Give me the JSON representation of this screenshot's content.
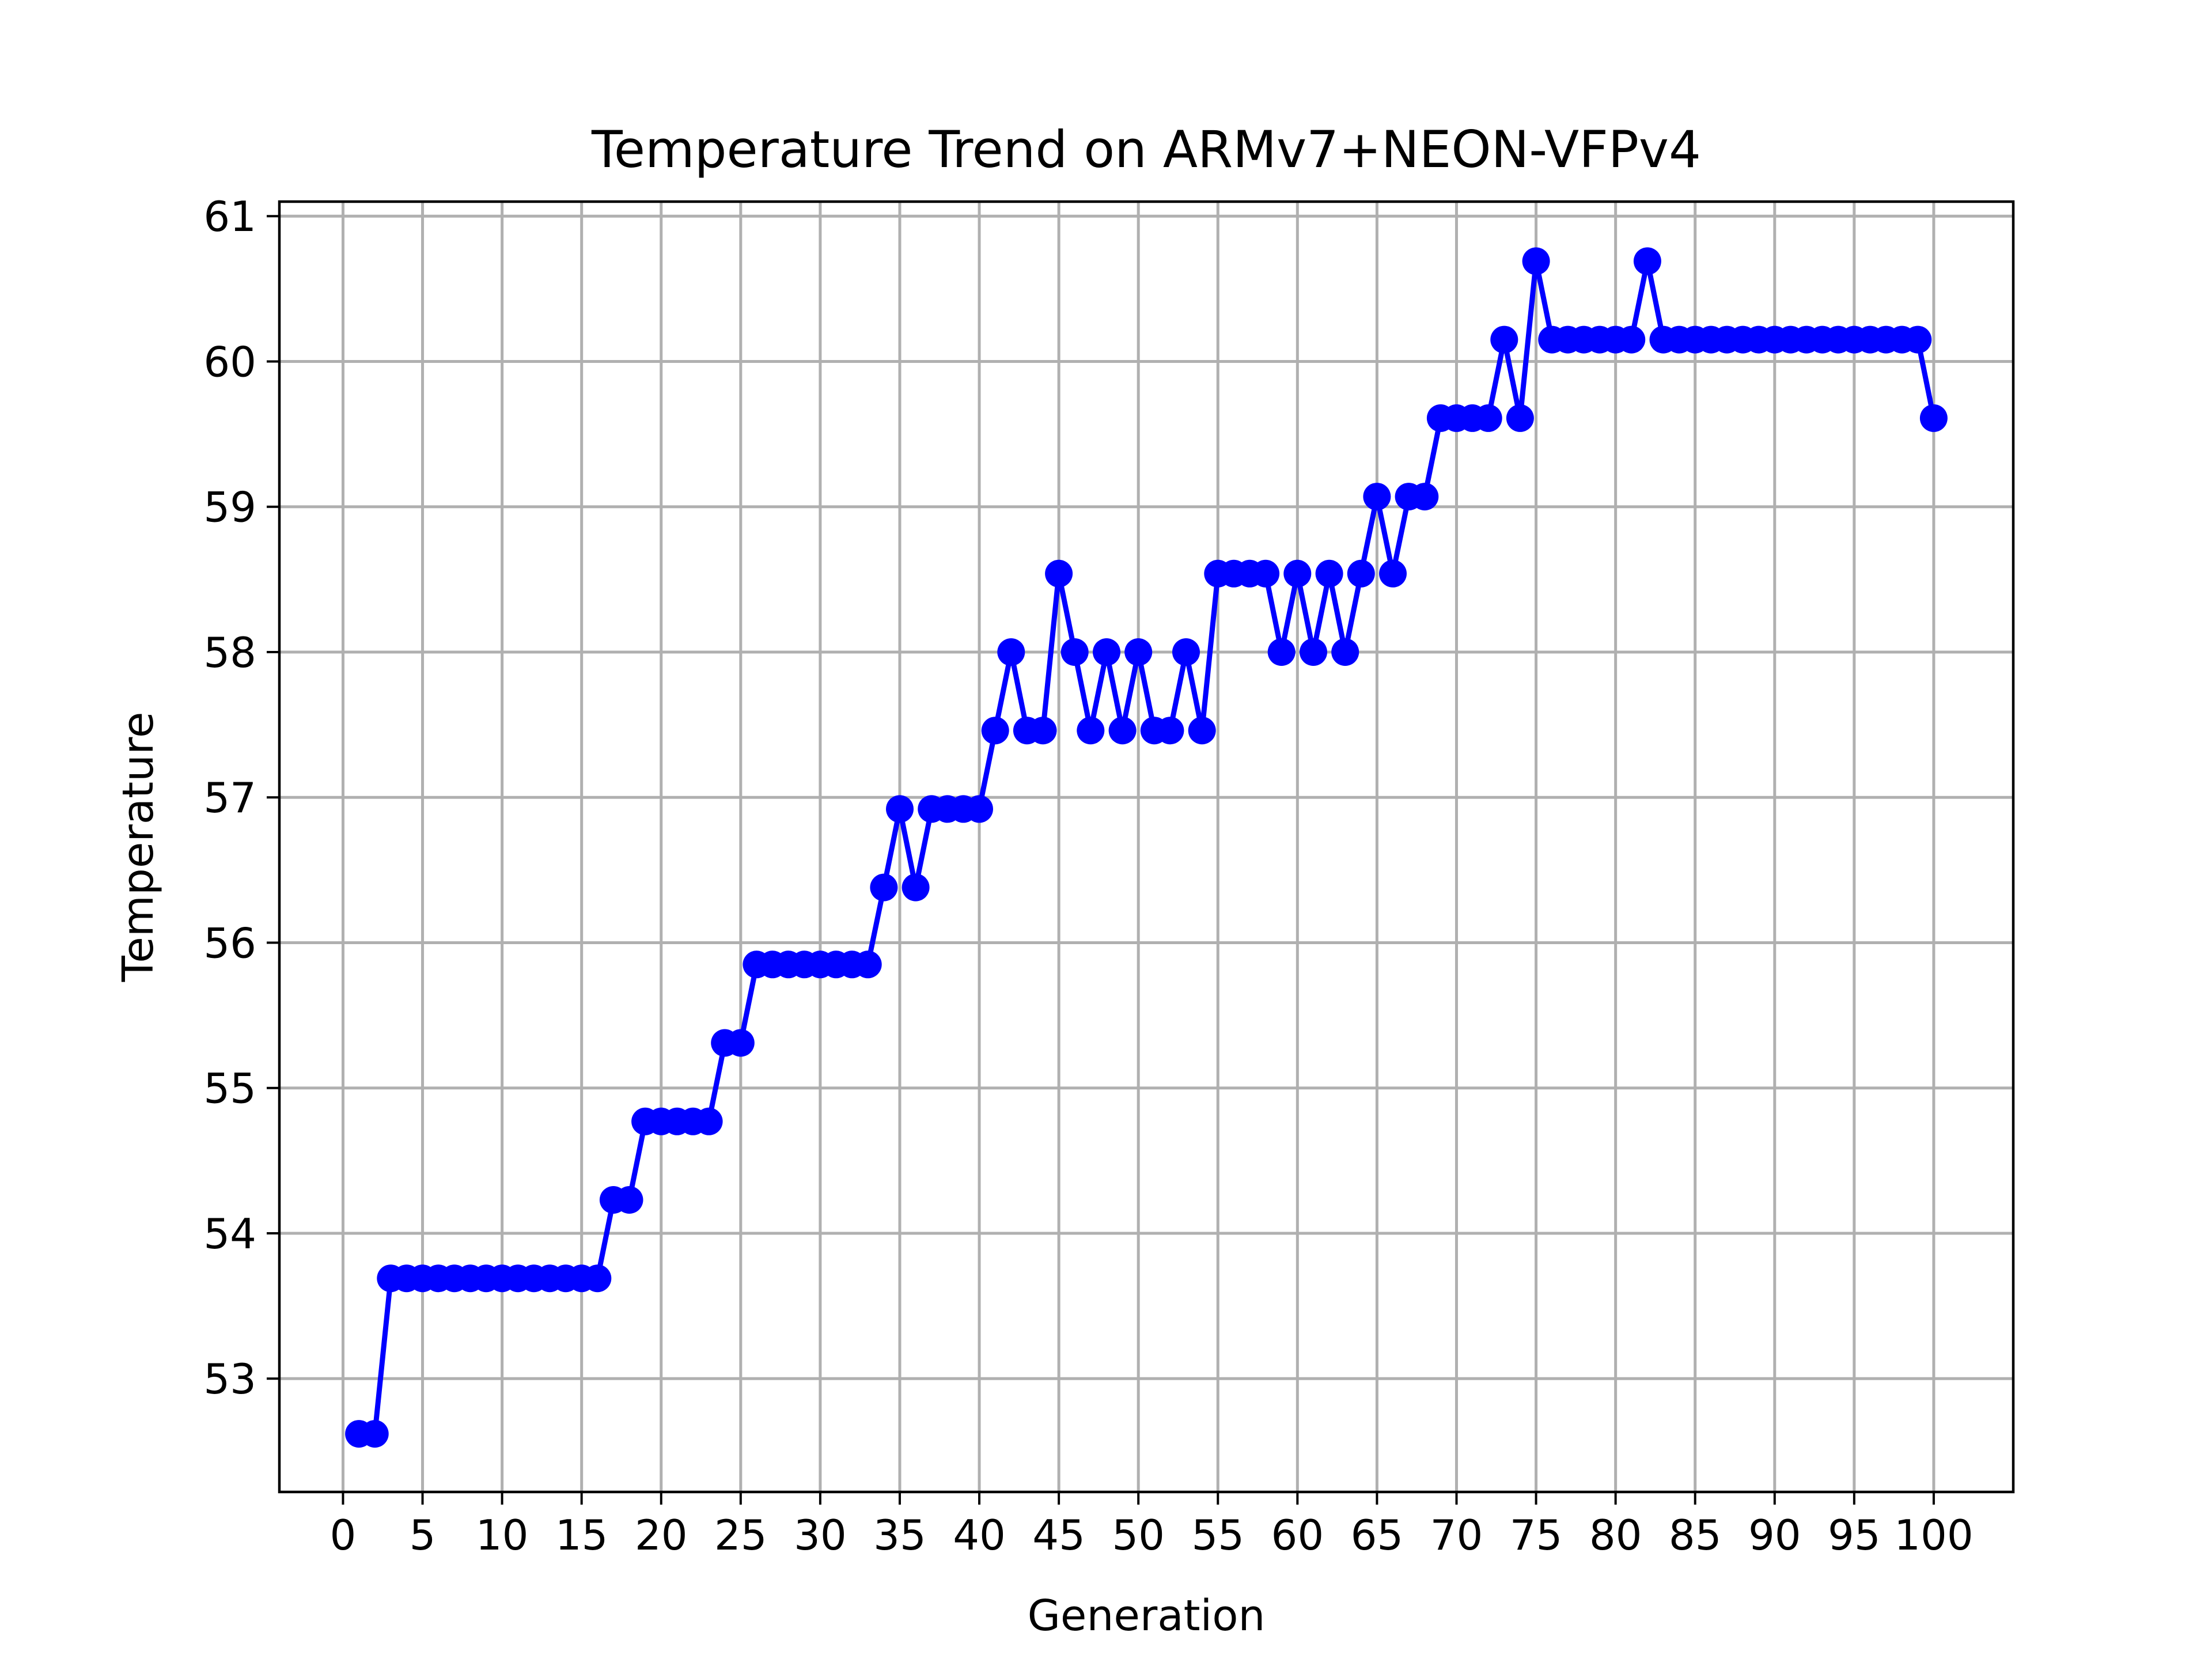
{
  "chart_data": {
    "type": "line",
    "title": "Temperature Trend on ARMv7+NEON-VFPv4",
    "xlabel": "Generation",
    "ylabel": "Temperature",
    "xlim": [
      -4,
      105
    ],
    "ylim": [
      52.22,
      61.1
    ],
    "xticks": [
      0,
      5,
      10,
      15,
      20,
      25,
      30,
      35,
      40,
      45,
      50,
      55,
      60,
      65,
      70,
      75,
      80,
      85,
      90,
      95,
      100
    ],
    "yticks": [
      53,
      54,
      55,
      56,
      57,
      58,
      59,
      60,
      61
    ],
    "grid": true,
    "color": "#0000ff",
    "marker": "circle",
    "series": [
      {
        "x": [
          1,
          2,
          3,
          4,
          5,
          6,
          7,
          8,
          9,
          10,
          11,
          12,
          13,
          14,
          15,
          16,
          17,
          18,
          19,
          20,
          21,
          22,
          23,
          24,
          25,
          26,
          27,
          28,
          29,
          30,
          31,
          32,
          33,
          34,
          35,
          36,
          37,
          38,
          39,
          40,
          41,
          42,
          43,
          44,
          45,
          46,
          47,
          48,
          49,
          50,
          51,
          52,
          53,
          54,
          55,
          56,
          57,
          58,
          59,
          60,
          61,
          62,
          63,
          64,
          65,
          66,
          67,
          68,
          69,
          70,
          71,
          72,
          73,
          74,
          75,
          76,
          77,
          78,
          79,
          80,
          81,
          82,
          83,
          84,
          85,
          86,
          87,
          88,
          89,
          90,
          91,
          92,
          93,
          94,
          95,
          96,
          97,
          98,
          99,
          100
        ],
        "y": [
          52.62,
          52.62,
          53.69,
          53.69,
          53.69,
          53.69,
          53.69,
          53.69,
          53.69,
          53.69,
          53.69,
          53.69,
          53.69,
          53.69,
          53.69,
          53.69,
          54.23,
          54.23,
          54.77,
          54.77,
          54.77,
          54.77,
          54.77,
          55.31,
          55.31,
          55.85,
          55.85,
          55.85,
          55.85,
          55.85,
          55.85,
          55.85,
          55.85,
          56.38,
          56.92,
          56.38,
          56.92,
          56.92,
          56.92,
          56.92,
          57.46,
          58.0,
          57.46,
          57.46,
          58.54,
          58.0,
          57.46,
          58.0,
          57.46,
          58.0,
          57.46,
          57.46,
          58.0,
          57.46,
          58.54,
          58.54,
          58.54,
          58.54,
          58.0,
          58.54,
          58.0,
          58.54,
          58.0,
          58.54,
          59.07,
          58.54,
          59.07,
          59.07,
          59.61,
          59.61,
          59.61,
          59.61,
          60.15,
          59.61,
          60.69,
          60.15,
          60.15,
          60.15,
          60.15,
          60.15,
          60.15,
          60.69,
          60.15,
          60.15,
          60.15,
          60.15,
          60.15,
          60.15,
          60.15,
          60.15,
          60.15,
          60.15,
          60.15,
          60.15,
          60.15,
          60.15,
          60.15,
          60.15,
          60.15,
          59.61
        ]
      }
    ]
  }
}
